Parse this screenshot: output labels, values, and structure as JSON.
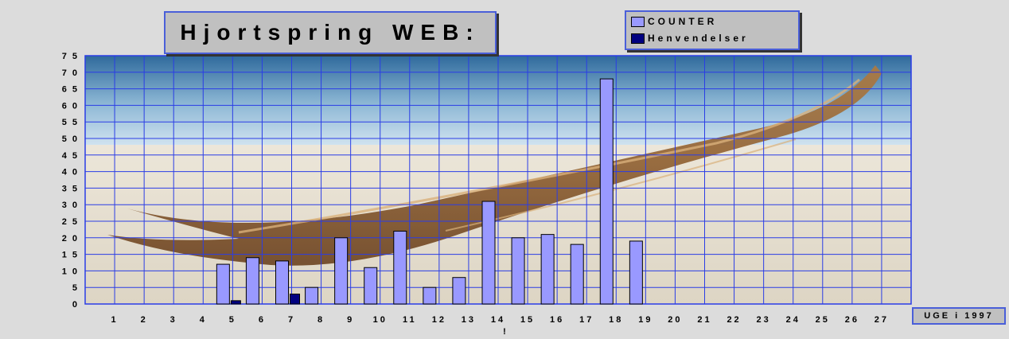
{
  "colors": {
    "background": "#dcdcdc",
    "grid": "#2a3de6",
    "counter_bar": "#9999ff",
    "henvendelser_bar": "#000080",
    "frame": "#c0c0c0",
    "frame_border": "#4a5fd9"
  },
  "chart_data": {
    "type": "bar",
    "title": "Hjortspring WEB:",
    "xlabel": "UGE i 1997",
    "ylabel": "",
    "categories": [
      "1",
      "2",
      "3",
      "4",
      "5",
      "6",
      "7",
      "8",
      "9",
      "10",
      "11",
      "12",
      "13",
      "14",
      "15",
      "16",
      "17",
      "18",
      "19",
      "20",
      "21",
      "22",
      "23",
      "24",
      "25",
      "26",
      "27"
    ],
    "series": [
      {
        "name": "COUNTER",
        "color": "#9999ff",
        "values": [
          0,
          0,
          0,
          0,
          12,
          14,
          13,
          5,
          20,
          11,
          22,
          5,
          8,
          31,
          20,
          21,
          18,
          68,
          19,
          0,
          0,
          0,
          0,
          0,
          0,
          0,
          0
        ]
      },
      {
        "name": "Henvendelser",
        "color": "#000080",
        "values": [
          0,
          0,
          0,
          0,
          1,
          0,
          3,
          0,
          0,
          0,
          0,
          0,
          0,
          0,
          0,
          0,
          0,
          0,
          0,
          0,
          0,
          0,
          0,
          0,
          0,
          0,
          0
        ]
      }
    ],
    "yticks": [
      "0",
      "5",
      "10",
      "15",
      "20",
      "25",
      "30",
      "35",
      "40",
      "45",
      "50",
      "55",
      "60",
      "65",
      "70",
      "75"
    ],
    "ylim": [
      0,
      75
    ],
    "grid": true,
    "legend_position": "top-right",
    "annotation": "!",
    "background_image": "photograph of the Hjortspring boat on sand"
  }
}
